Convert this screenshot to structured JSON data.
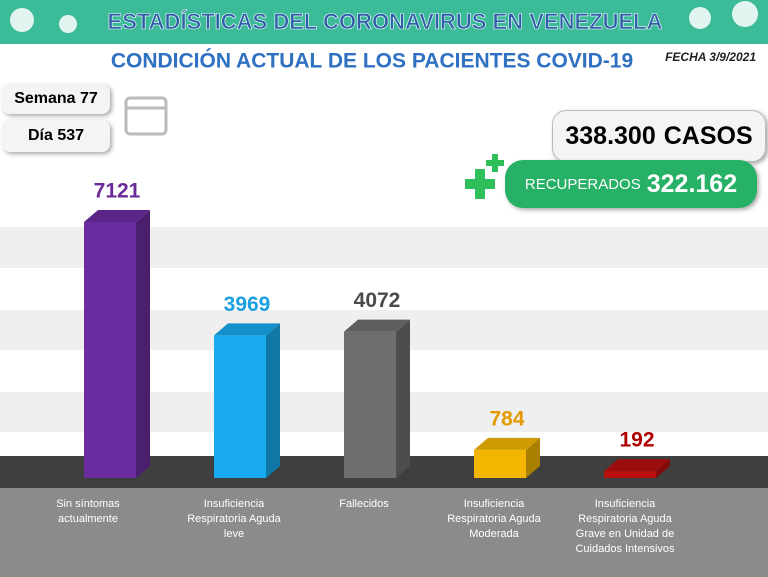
{
  "header": {
    "title": "ESTADÍSTICAS DEL CORONAVIRUS EN VENEZUELA",
    "date": "FECHA 3/9/2021"
  },
  "info": {
    "week": "Semana 77",
    "day": "Día 537",
    "cases_value": "338.300",
    "cases_label": "CASOS",
    "recovered_label": "RECUPERADOS",
    "recovered_value": "322.162"
  },
  "chart_data": {
    "type": "bar3d",
    "title": "CONDICIÓN ACTUAL DE LOS PACIENTES COVID-19",
    "categories": [
      "Sin síntomas actualmente",
      "Insuficiencia Respiratoria Aguda leve",
      "Fallecidos",
      "Insuficiencia Respiratoria Aguda Moderada",
      "Insuficiencia Respiratoria Aguda Grave en Unidad de Cuidados Intensivos"
    ],
    "values": [
      7121,
      3969,
      4072,
      784,
      192
    ],
    "colors": [
      "#6a2c9e",
      "#18aaee",
      "#6e6e6e",
      "#f2b600",
      "#b80f0f"
    ],
    "label_colors": [
      "#6b2a9a",
      "#1aa0e0",
      "#4a4a4a",
      "#e39a00",
      "#b00000"
    ]
  }
}
